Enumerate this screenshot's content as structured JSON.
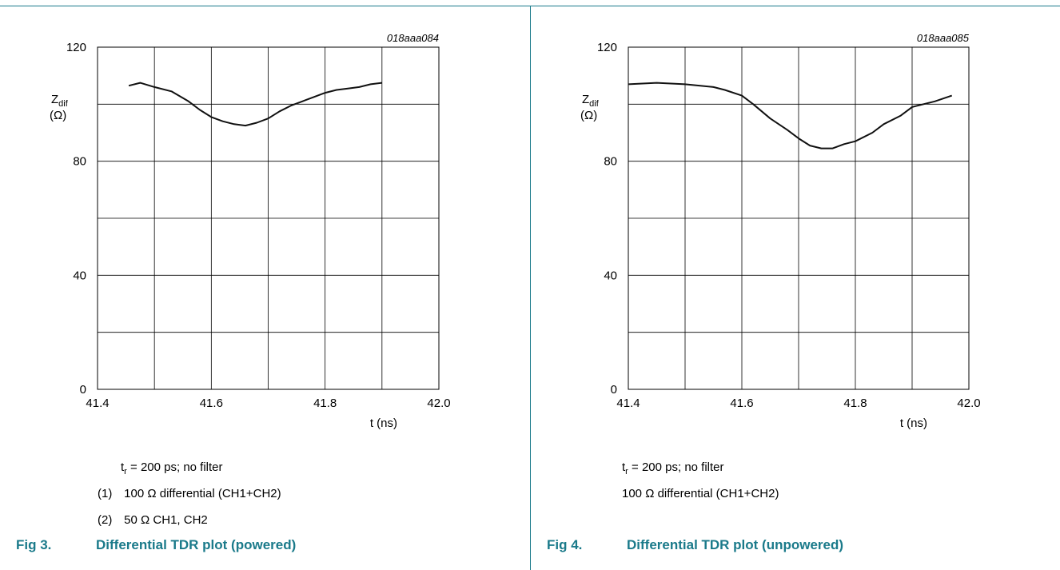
{
  "chart_data": [
    {
      "type": "line",
      "code": "018aaa084",
      "y_label": "Z",
      "y_label_sub": "dif",
      "y_unit": "(Ω)",
      "x_label": "t (ns)",
      "xlim": [
        41.4,
        42.0
      ],
      "ylim": [
        0,
        120
      ],
      "x_ticks": [
        "41.4",
        "41.6",
        "41.8",
        "42.0"
      ],
      "y_ticks": [
        "0",
        "40",
        "80",
        "120"
      ],
      "grid": true,
      "series": [
        {
          "x": [
            41.455,
            41.475,
            41.5,
            41.53,
            41.56,
            41.58,
            41.6,
            41.62,
            41.64,
            41.66,
            41.68,
            41.7,
            41.72,
            41.74,
            41.76,
            41.78,
            41.8,
            41.82,
            41.84,
            41.86,
            41.88,
            41.9
          ],
          "y": [
            106.5,
            107.5,
            106,
            104.5,
            101,
            98,
            95.5,
            94,
            93,
            92.5,
            93.5,
            95,
            97.5,
            99.5,
            101,
            102.5,
            104,
            105,
            105.5,
            106,
            107,
            107.5
          ]
        }
      ],
      "conditions": {
        "t_prefix": "t",
        "t_sub": "r",
        "t_text": "= 200 ps; no filter",
        "items": [
          {
            "num": "(1)",
            "text": "100 Ω differential (CH1+CH2)"
          },
          {
            "num": "(2)",
            "text": "50 Ω CH1, CH2"
          }
        ]
      },
      "figure": {
        "number": "Fig 3.",
        "title": "Differential TDR plot (powered)"
      }
    },
    {
      "type": "line",
      "code": "018aaa085",
      "y_label": "Z",
      "y_label_sub": "dif",
      "y_unit": "(Ω)",
      "x_label": "t (ns)",
      "xlim": [
        41.4,
        42.0
      ],
      "ylim": [
        0,
        120
      ],
      "x_ticks": [
        "41.4",
        "41.6",
        "41.8",
        "42.0"
      ],
      "y_ticks": [
        "0",
        "40",
        "80",
        "120"
      ],
      "grid": true,
      "series": [
        {
          "x": [
            41.4,
            41.45,
            41.5,
            41.55,
            41.57,
            41.6,
            41.62,
            41.65,
            41.68,
            41.7,
            41.72,
            41.74,
            41.76,
            41.78,
            41.8,
            41.83,
            41.85,
            41.88,
            41.9,
            41.94,
            41.97
          ],
          "y": [
            107,
            107.5,
            107,
            106,
            105,
            103,
            100,
            95,
            91,
            88,
            85.5,
            84.5,
            84.5,
            86,
            87,
            90,
            93,
            96,
            99,
            101,
            103
          ]
        }
      ],
      "conditions": {
        "t_prefix": "t",
        "t_sub": "r",
        "t_text": "= 200 ps; no filter",
        "items": [
          {
            "num": "",
            "text": "100 Ω differential (CH1+CH2)"
          }
        ]
      },
      "figure": {
        "number": "Fig 4.",
        "title": "Differential TDR plot (unpowered)"
      }
    }
  ]
}
